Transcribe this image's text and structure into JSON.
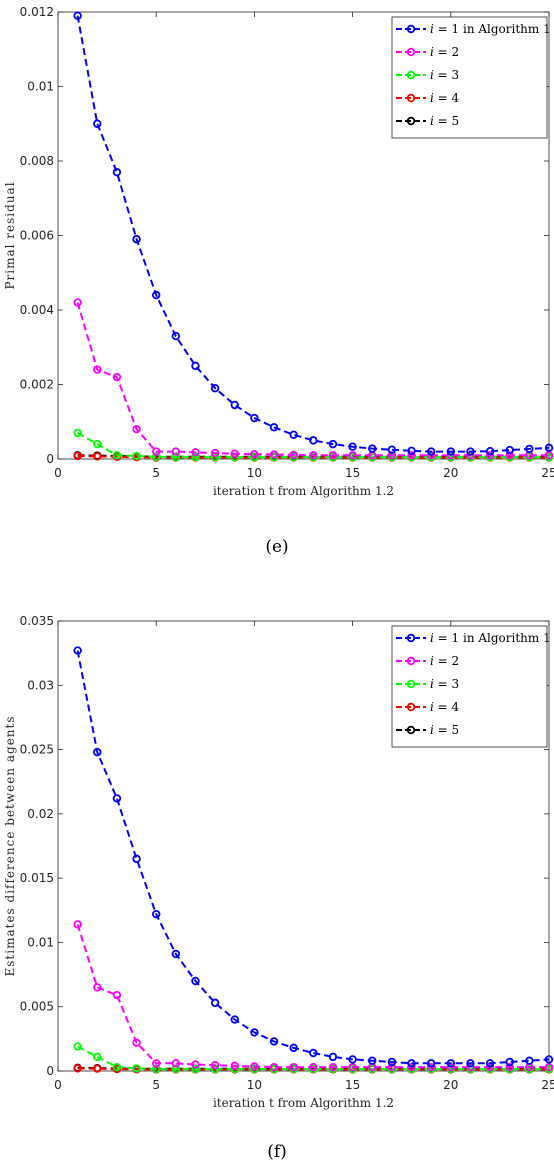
{
  "chart_data": [
    {
      "type": "line",
      "caption": "(e)",
      "xlabel": "iteration t from Algorithm 1.2",
      "ylabel": "Primal residual",
      "xlim": [
        0,
        25
      ],
      "ylim": [
        0,
        0.012
      ],
      "xticks": [
        0,
        5,
        10,
        15,
        20,
        25
      ],
      "yticks": [
        0,
        0.002,
        0.004,
        0.006,
        0.008,
        0.01,
        0.012
      ],
      "ytick_labels": [
        "0",
        "0.002",
        "0.004",
        "0.006",
        "0.008",
        "0.01",
        "0.012"
      ],
      "legend_position": "top-right",
      "grid": false,
      "x": [
        1,
        2,
        3,
        4,
        5,
        6,
        7,
        8,
        9,
        10,
        11,
        12,
        13,
        14,
        15,
        16,
        17,
        18,
        19,
        20,
        21,
        22,
        23,
        24,
        25
      ],
      "series": [
        {
          "name": "i = 1 in Algorithm 1",
          "legend_italic": "i",
          "legend_rest": " = 1 in Algorithm 1",
          "color": "#0000ff",
          "values": [
            0.0119,
            0.009,
            0.0077,
            0.0059,
            0.0044,
            0.0033,
            0.0025,
            0.0019,
            0.00145,
            0.0011,
            0.00085,
            0.00065,
            0.0005,
            0.0004,
            0.00033,
            0.00028,
            0.00025,
            0.00022,
            0.0002,
            0.0002,
            0.0002,
            0.00021,
            0.00024,
            0.00027,
            0.0003
          ]
        },
        {
          "name": "i = 2",
          "legend_italic": "i",
          "legend_rest": " = 2",
          "color": "#ff00ff",
          "values": [
            0.0042,
            0.0024,
            0.0022,
            0.0008,
            0.0002,
            0.0002,
            0.00018,
            0.00016,
            0.00014,
            0.00013,
            0.00012,
            0.00011,
            0.0001,
            0.0001,
            0.0001,
            0.0001,
            0.0001,
            0.0001,
            0.0001,
            0.0001,
            0.0001,
            0.0001,
            0.0001,
            0.0001,
            0.0001
          ]
        },
        {
          "name": "i = 3",
          "legend_italic": "i",
          "legend_rest": " = 3",
          "color": "#00ff00",
          "values": [
            0.0007,
            0.0004,
            0.0001,
            8e-05,
            6e-05,
            5e-05,
            5e-05,
            5e-05,
            5e-05,
            5e-05,
            5e-05,
            5e-05,
            5e-05,
            5e-05,
            5e-05,
            5e-05,
            5e-05,
            5e-05,
            5e-05,
            5e-05,
            5e-05,
            5e-05,
            5e-05,
            5e-05,
            5e-05
          ]
        },
        {
          "name": "i = 4",
          "legend_italic": "i",
          "legend_rest": " = 4",
          "color": "#ff0000",
          "values": [
            8e-05,
            7e-05,
            6e-05,
            5e-05,
            4e-05,
            4e-05,
            4e-05,
            4e-05,
            4e-05,
            4e-05,
            4e-05,
            4e-05,
            4e-05,
            4e-05,
            4e-05,
            4e-05,
            4e-05,
            4e-05,
            4e-05,
            4e-05,
            4e-05,
            4e-05,
            4e-05,
            4e-05,
            4e-05
          ]
        },
        {
          "name": "i = 5",
          "legend_italic": "i",
          "legend_rest": " = 5",
          "color": "#000000",
          "values": [
            0.0001,
            9e-05,
            8e-05,
            7e-05,
            6e-05,
            6e-05,
            6e-05,
            6e-05,
            6e-05,
            6e-05,
            6e-05,
            6e-05,
            6e-05,
            6e-05,
            6e-05,
            6e-05,
            6e-05,
            6e-05,
            6e-05,
            6e-05,
            6e-05,
            6e-05,
            6e-05,
            6e-05,
            6e-05
          ]
        }
      ]
    },
    {
      "type": "line",
      "caption": "(f)",
      "xlabel": "iteration t from Algorithm 1.2",
      "ylabel": "Estimates difference between agents",
      "xlim": [
        0,
        25
      ],
      "ylim": [
        0,
        0.035
      ],
      "xticks": [
        0,
        5,
        10,
        15,
        20,
        25
      ],
      "yticks": [
        0,
        0.005,
        0.01,
        0.015,
        0.02,
        0.025,
        0.03,
        0.035
      ],
      "ytick_labels": [
        "0",
        "0.005",
        "0.01",
        "0.015",
        "0.02",
        "0.025",
        "0.03",
        "0.035"
      ],
      "legend_position": "top-right",
      "grid": false,
      "x": [
        1,
        2,
        3,
        4,
        5,
        6,
        7,
        8,
        9,
        10,
        11,
        12,
        13,
        14,
        15,
        16,
        17,
        18,
        19,
        20,
        21,
        22,
        23,
        24,
        25
      ],
      "series": [
        {
          "name": "i = 1 in Algorithm 1",
          "legend_italic": "i",
          "legend_rest": " = 1 in Algorithm 1",
          "color": "#0000ff",
          "values": [
            0.0327,
            0.0248,
            0.0212,
            0.0165,
            0.0122,
            0.0091,
            0.007,
            0.0053,
            0.004,
            0.003,
            0.0023,
            0.0018,
            0.0014,
            0.0011,
            0.0009,
            0.0008,
            0.0007,
            0.0006,
            0.0006,
            0.0006,
            0.0006,
            0.0006,
            0.0007,
            0.0008,
            0.0009
          ]
        },
        {
          "name": "i = 2",
          "legend_italic": "i",
          "legend_rest": " = 2",
          "color": "#ff00ff",
          "values": [
            0.0114,
            0.0065,
            0.0059,
            0.0022,
            0.0006,
            0.0006,
            0.0005,
            0.00045,
            0.0004,
            0.00035,
            0.0003,
            0.0003,
            0.0003,
            0.0003,
            0.0003,
            0.0003,
            0.0003,
            0.0003,
            0.0003,
            0.0003,
            0.0003,
            0.0003,
            0.0003,
            0.0003,
            0.0003
          ]
        },
        {
          "name": "i = 3",
          "legend_italic": "i",
          "legend_rest": " = 3",
          "color": "#00ff00",
          "values": [
            0.0019,
            0.0011,
            0.0003,
            0.0002,
            0.00015,
            0.00015,
            0.00015,
            0.00015,
            0.00015,
            0.00015,
            0.00015,
            0.00015,
            0.00015,
            0.00015,
            0.00015,
            0.00015,
            0.00015,
            0.00015,
            0.00015,
            0.00015,
            0.00015,
            0.00015,
            0.00015,
            0.00015,
            0.00015
          ]
        },
        {
          "name": "i = 4",
          "legend_italic": "i",
          "legend_rest": " = 4",
          "color": "#ff0000",
          "values": [
            0.0002,
            0.00018,
            0.00015,
            0.00013,
            0.00012,
            0.00012,
            0.00012,
            0.00012,
            0.00012,
            0.00012,
            0.00012,
            0.00012,
            0.00012,
            0.00012,
            0.00012,
            0.00012,
            0.00012,
            0.00012,
            0.00012,
            0.00012,
            0.00012,
            0.00012,
            0.00012,
            0.00012,
            0.00012
          ]
        },
        {
          "name": "i = 5",
          "legend_italic": "i",
          "legend_rest": " = 5",
          "color": "#000000",
          "values": [
            0.00025,
            0.00022,
            0.0002,
            0.00018,
            0.00017,
            0.00017,
            0.00017,
            0.00017,
            0.00017,
            0.00017,
            0.00017,
            0.00017,
            0.00017,
            0.00017,
            0.00017,
            0.00017,
            0.00017,
            0.00017,
            0.00017,
            0.00017,
            0.00017,
            0.00017,
            0.00017,
            0.00017,
            0.00017
          ]
        }
      ]
    }
  ]
}
